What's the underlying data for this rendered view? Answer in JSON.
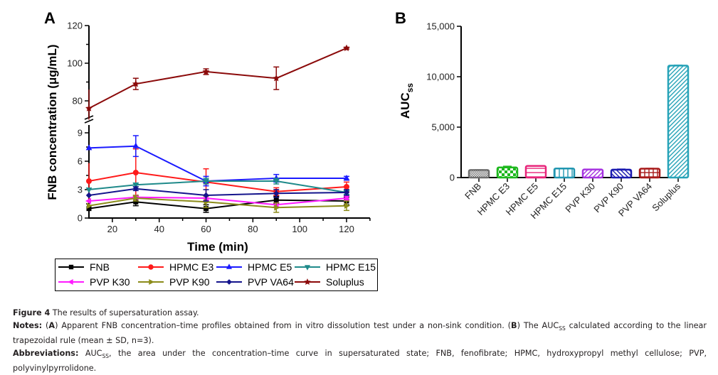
{
  "chart_data": [
    {
      "panel": "A",
      "type": "line",
      "xlabel": "Time (min)",
      "ylabel": "FNB concentration (μg/mL)",
      "x": [
        10,
        30,
        60,
        90,
        120
      ],
      "xlim": [
        10,
        130
      ],
      "xticks": [
        20,
        40,
        60,
        80,
        100,
        120
      ],
      "y_axis_broken": true,
      "ylim_lower": [
        0,
        9
      ],
      "yticks_lower": [
        0,
        3,
        6,
        9
      ],
      "ylim_upper": [
        70,
        120
      ],
      "yticks_upper": [
        80,
        100,
        120
      ],
      "legend_position": "bottom",
      "series": [
        {
          "name": "FNB",
          "color": "#000000",
          "marker": "square",
          "values": [
            1.0,
            1.7,
            1.0,
            1.9,
            1.8
          ],
          "sd": [
            0.3,
            0.4,
            0.4,
            0.4,
            0.4
          ]
        },
        {
          "name": "HPMC E3",
          "color": "#ff1a1a",
          "marker": "circle",
          "values": [
            3.9,
            4.8,
            3.8,
            2.8,
            3.3
          ],
          "sd": [
            1.9,
            2.5,
            1.4,
            0.4,
            0.5
          ]
        },
        {
          "name": "HPMC E5",
          "color": "#1a1aff",
          "marker": "triangle-up",
          "values": [
            7.4,
            7.6,
            3.9,
            4.2,
            4.2
          ],
          "sd": [
            0.2,
            1.1,
            0.5,
            0.4,
            0.2
          ]
        },
        {
          "name": "HPMC E15",
          "color": "#1f8a8a",
          "marker": "triangle-down",
          "values": [
            3.0,
            3.5,
            3.9,
            3.9,
            2.7
          ],
          "sd": [
            0.1,
            0.2,
            0.3,
            0.3,
            0.2
          ]
        },
        {
          "name": "PVP K30",
          "color": "#ff1aff",
          "marker": "triangle-left",
          "values": [
            1.8,
            2.2,
            2.1,
            1.4,
            2.1
          ],
          "sd": [
            0.2,
            0.2,
            0.2,
            0.2,
            0.2
          ]
        },
        {
          "name": "PVP K90",
          "color": "#8c8c1a",
          "marker": "triangle-right",
          "values": [
            1.3,
            2.1,
            1.7,
            1.1,
            1.3
          ],
          "sd": [
            0.2,
            0.3,
            0.6,
            0.5,
            0.5
          ]
        },
        {
          "name": "PVP VA64",
          "color": "#14148c",
          "marker": "diamond",
          "values": [
            2.4,
            3.1,
            2.4,
            2.6,
            2.7
          ],
          "sd": [
            0.2,
            0.2,
            0.6,
            0.4,
            0.3
          ]
        },
        {
          "name": "Soluplus",
          "color": "#8b0a0a",
          "marker": "star",
          "values": [
            76,
            89,
            95.5,
            92,
            108
          ],
          "sd": [
            10,
            3,
            1.5,
            6,
            0.5
          ]
        }
      ]
    },
    {
      "panel": "B",
      "type": "bar",
      "xlabel": "",
      "ylabel": "AUC",
      "ylabel_sub": "ss",
      "ylim": [
        0,
        15000
      ],
      "yticks": [
        "0",
        "5,000",
        "10,000",
        "15,000"
      ],
      "ytick_values": [
        0,
        5000,
        10000,
        15000
      ],
      "categories": [
        "FNB",
        "HPMC E3",
        "HPMC E5",
        "HPMC E15",
        "PVP K30",
        "PVP K90",
        "PVP VA64",
        "Soluplus"
      ],
      "values": [
        750,
        1000,
        1150,
        900,
        800,
        780,
        880,
        11100
      ],
      "sd": [
        20,
        120,
        30,
        20,
        20,
        60,
        30,
        50
      ],
      "colors": [
        "#6e6e6e",
        "#1fb81f",
        "#e8257a",
        "#2196b0",
        "#a633e0",
        "#1a1ab0",
        "#a81a1a",
        "#27a3b8"
      ],
      "patterns": [
        "checker-fine",
        "checker-large",
        "horizontal",
        "vertical",
        "diagonal-up",
        "diagonal-down",
        "grid",
        "diagonal-up"
      ]
    }
  ],
  "panels": {
    "a_label": "A",
    "b_label": "B"
  },
  "caption": {
    "figure_label": "Figure 4",
    "figure_title": " The results of supersaturation assay.",
    "notes_label": "Notes:",
    "notes_a_open": " (",
    "notes_a": "A",
    "notes_a_text": ") Apparent FNB concentration–time profiles obtained from in vitro dissolution test under a non-sink condition. (",
    "notes_b": "B",
    "notes_b_text1": ") The AUC",
    "notes_b_sub": "SS",
    "notes_b_text2": " calculated according to the linear trapezoidal rule (mean ± SD, n=3).",
    "abbrev_label": "Abbreviations:",
    "abbrev_text1": " AUC",
    "abbrev_sub": "SS",
    "abbrev_text2": ", the area under the concentration–time curve in supersaturated state; FNB, fenofibrate; HPMC, hydroxypropyl methyl cellulose; PVP, polyvinylpyrrolidone."
  }
}
